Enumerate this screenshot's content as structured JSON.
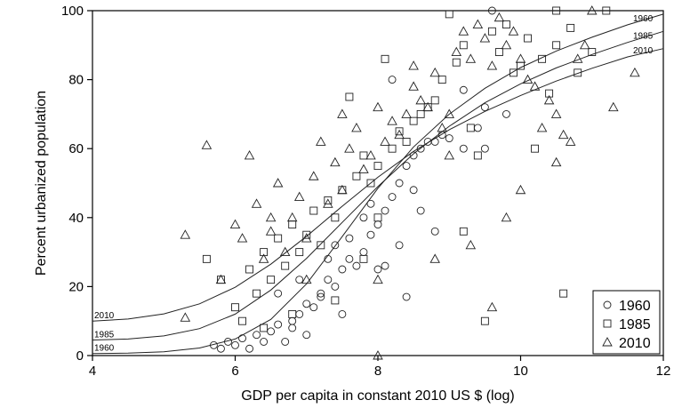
{
  "chart_data": {
    "type": "scatter",
    "xlabel": "GDP per capita in constant 2010 US $ (log)",
    "ylabel": "Percent urbanized population",
    "xlim": [
      4,
      12
    ],
    "ylim": [
      0,
      100
    ],
    "x_ticks": [
      4,
      6,
      8,
      10,
      12
    ],
    "y_ticks": [
      0,
      20,
      40,
      60,
      80,
      100
    ],
    "grid": false,
    "legend_position": "bottom-right",
    "series": [
      {
        "name": "1960",
        "marker": "circle",
        "points": [
          [
            5.7,
            3
          ],
          [
            5.8,
            2
          ],
          [
            5.9,
            4
          ],
          [
            6.0,
            3
          ],
          [
            6.1,
            5
          ],
          [
            6.2,
            2
          ],
          [
            6.3,
            6
          ],
          [
            6.4,
            4
          ],
          [
            6.5,
            7
          ],
          [
            6.6,
            9
          ],
          [
            6.7,
            4
          ],
          [
            6.8,
            8
          ],
          [
            6.9,
            12
          ],
          [
            7.0,
            6
          ],
          [
            7.1,
            14
          ],
          [
            7.2,
            18
          ],
          [
            7.3,
            22
          ],
          [
            7.4,
            20
          ],
          [
            7.5,
            25
          ],
          [
            7.6,
            28
          ],
          [
            7.7,
            26
          ],
          [
            7.8,
            30
          ],
          [
            7.9,
            35
          ],
          [
            8.0,
            38
          ],
          [
            8.1,
            42
          ],
          [
            8.2,
            46
          ],
          [
            8.3,
            50
          ],
          [
            8.4,
            55
          ],
          [
            8.5,
            58
          ],
          [
            8.6,
            60
          ],
          [
            8.7,
            62
          ],
          [
            8.8,
            62
          ],
          [
            8.9,
            64
          ],
          [
            9.0,
            63
          ],
          [
            9.2,
            60
          ],
          [
            9.4,
            66
          ],
          [
            9.5,
            72
          ],
          [
            9.6,
            100
          ],
          [
            8.2,
            80
          ],
          [
            8.4,
            17
          ],
          [
            9.2,
            77
          ],
          [
            9.5,
            60
          ],
          [
            6.8,
            10
          ],
          [
            7.0,
            15
          ],
          [
            7.2,
            17
          ],
          [
            7.5,
            12
          ],
          [
            7.8,
            40
          ],
          [
            8.0,
            25
          ],
          [
            8.3,
            32
          ],
          [
            8.6,
            42
          ],
          [
            8.8,
            36
          ],
          [
            9.8,
            70
          ],
          [
            7.4,
            32
          ],
          [
            7.6,
            34
          ],
          [
            6.9,
            22
          ],
          [
            7.3,
            28
          ],
          [
            8.1,
            26
          ],
          [
            8.5,
            48
          ],
          [
            7.9,
            44
          ],
          [
            6.6,
            18
          ]
        ]
      },
      {
        "name": "1985",
        "marker": "square",
        "points": [
          [
            5.6,
            28
          ],
          [
            5.8,
            22
          ],
          [
            6.0,
            14
          ],
          [
            6.1,
            10
          ],
          [
            6.2,
            25
          ],
          [
            6.3,
            18
          ],
          [
            6.4,
            30
          ],
          [
            6.5,
            22
          ],
          [
            6.6,
            34
          ],
          [
            6.7,
            26
          ],
          [
            6.8,
            38
          ],
          [
            6.9,
            30
          ],
          [
            7.0,
            35
          ],
          [
            7.1,
            42
          ],
          [
            7.2,
            32
          ],
          [
            7.3,
            45
          ],
          [
            7.4,
            40
          ],
          [
            7.5,
            48
          ],
          [
            7.6,
            75
          ],
          [
            7.7,
            52
          ],
          [
            7.8,
            58
          ],
          [
            7.9,
            50
          ],
          [
            8.0,
            55
          ],
          [
            8.1,
            86
          ],
          [
            8.2,
            60
          ],
          [
            8.3,
            65
          ],
          [
            8.4,
            62
          ],
          [
            8.5,
            68
          ],
          [
            8.6,
            70
          ],
          [
            8.7,
            72
          ],
          [
            8.8,
            74
          ],
          [
            8.9,
            80
          ],
          [
            9.0,
            99
          ],
          [
            9.1,
            85
          ],
          [
            9.2,
            90
          ],
          [
            9.3,
            66
          ],
          [
            9.4,
            58
          ],
          [
            9.5,
            10
          ],
          [
            9.6,
            94
          ],
          [
            9.7,
            88
          ],
          [
            9.8,
            96
          ],
          [
            9.9,
            82
          ],
          [
            10.0,
            84
          ],
          [
            10.1,
            92
          ],
          [
            10.2,
            60
          ],
          [
            10.3,
            86
          ],
          [
            10.4,
            76
          ],
          [
            10.5,
            90
          ],
          [
            10.6,
            18
          ],
          [
            10.7,
            95
          ],
          [
            10.8,
            82
          ],
          [
            11.0,
            88
          ],
          [
            11.2,
            100
          ],
          [
            10.5,
            100
          ],
          [
            9.2,
            36
          ],
          [
            8.0,
            40
          ],
          [
            7.4,
            16
          ],
          [
            6.8,
            12
          ],
          [
            6.4,
            8
          ],
          [
            7.8,
            28
          ]
        ]
      },
      {
        "name": "2010",
        "marker": "triangle",
        "points": [
          [
            5.3,
            11
          ],
          [
            5.3,
            35
          ],
          [
            5.6,
            61
          ],
          [
            5.8,
            22
          ],
          [
            6.0,
            38
          ],
          [
            6.2,
            58
          ],
          [
            6.3,
            44
          ],
          [
            6.4,
            28
          ],
          [
            6.5,
            36
          ],
          [
            6.6,
            50
          ],
          [
            6.7,
            30
          ],
          [
            6.8,
            40
          ],
          [
            6.9,
            46
          ],
          [
            7.0,
            34
          ],
          [
            7.1,
            52
          ],
          [
            7.2,
            62
          ],
          [
            7.3,
            44
          ],
          [
            7.4,
            56
          ],
          [
            7.5,
            48
          ],
          [
            7.6,
            60
          ],
          [
            7.7,
            66
          ],
          [
            7.8,
            54
          ],
          [
            7.9,
            58
          ],
          [
            8.0,
            72
          ],
          [
            8.1,
            62
          ],
          [
            8.2,
            68
          ],
          [
            8.3,
            64
          ],
          [
            8.4,
            70
          ],
          [
            8.5,
            78
          ],
          [
            8.6,
            74
          ],
          [
            8.7,
            72
          ],
          [
            8.8,
            82
          ],
          [
            8.9,
            66
          ],
          [
            9.0,
            70
          ],
          [
            9.1,
            88
          ],
          [
            9.2,
            94
          ],
          [
            9.3,
            86
          ],
          [
            9.4,
            96
          ],
          [
            9.5,
            92
          ],
          [
            9.6,
            84
          ],
          [
            9.7,
            98
          ],
          [
            9.8,
            90
          ],
          [
            9.9,
            94
          ],
          [
            10.0,
            86
          ],
          [
            10.1,
            80
          ],
          [
            10.2,
            78
          ],
          [
            10.3,
            66
          ],
          [
            10.4,
            74
          ],
          [
            10.5,
            70
          ],
          [
            10.6,
            64
          ],
          [
            10.7,
            62
          ],
          [
            10.8,
            86
          ],
          [
            10.9,
            90
          ],
          [
            11.0,
            100
          ],
          [
            11.3,
            72
          ],
          [
            11.6,
            82
          ],
          [
            9.0,
            58
          ],
          [
            9.3,
            32
          ],
          [
            9.6,
            14
          ],
          [
            9.8,
            40
          ],
          [
            10.0,
            48
          ],
          [
            8.0,
            0
          ],
          [
            8.0,
            22
          ],
          [
            8.8,
            28
          ],
          [
            7.0,
            22
          ],
          [
            6.5,
            40
          ],
          [
            6.1,
            34
          ],
          [
            7.5,
            70
          ],
          [
            8.5,
            84
          ],
          [
            10.5,
            56
          ]
        ]
      }
    ],
    "fitted_curves": [
      {
        "name": "1960",
        "x": [
          4.0,
          4.5,
          5.0,
          5.5,
          6.0,
          6.5,
          7.0,
          7.5,
          8.0,
          8.5,
          9.0,
          9.5,
          10.0,
          10.5,
          11.0,
          11.5,
          12.0
        ],
        "y": [
          0.6,
          0.7,
          1.1,
          2.2,
          4.8,
          10.5,
          20.8,
          34.5,
          48.5,
          60.5,
          70.0,
          77.5,
          83.5,
          88.3,
          92.3,
          95.9,
          99.0
        ]
      },
      {
        "name": "1985",
        "x": [
          4.0,
          4.5,
          5.0,
          5.5,
          6.0,
          6.5,
          7.0,
          7.5,
          8.0,
          8.5,
          9.0,
          9.5,
          10.0,
          10.5,
          11.0,
          11.5,
          12.0
        ],
        "y": [
          4.5,
          4.8,
          5.7,
          7.8,
          12.0,
          19.0,
          28.2,
          38.6,
          49.0,
          58.5,
          66.5,
          73.3,
          78.8,
          83.4,
          87.3,
          90.8,
          94.0
        ]
      },
      {
        "name": "2010",
        "x": [
          4.0,
          4.5,
          5.0,
          5.5,
          6.0,
          6.5,
          7.0,
          7.5,
          8.0,
          8.5,
          9.0,
          9.5,
          10.0,
          10.5,
          11.0,
          11.5,
          12.0
        ],
        "y": [
          10.0,
          10.6,
          12.1,
          15.0,
          19.8,
          26.5,
          34.6,
          43.3,
          51.7,
          59.2,
          65.5,
          70.8,
          75.4,
          79.6,
          83.3,
          86.6,
          89.0
        ]
      }
    ]
  }
}
